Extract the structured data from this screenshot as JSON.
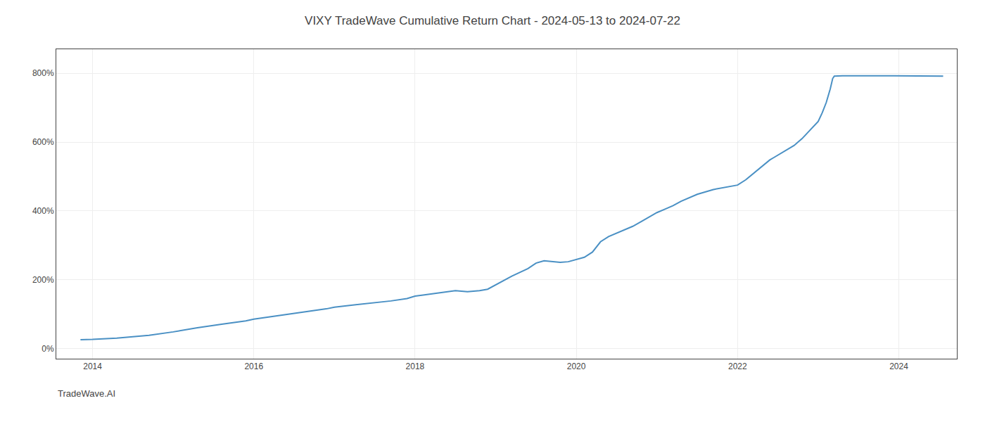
{
  "chart_data": {
    "type": "line",
    "title": "VIXY TradeWave Cumulative Return Chart - 2024-05-13 to 2024-07-22",
    "annotations": [
      "TradeWave.AI"
    ],
    "color": "#4a90c4",
    "grid": true,
    "x": [
      2013.85,
      2014.0,
      2014.3,
      2014.7,
      2015.0,
      2015.3,
      2015.6,
      2015.9,
      2016.0,
      2016.3,
      2016.6,
      2016.9,
      2017.0,
      2017.3,
      2017.5,
      2017.7,
      2017.9,
      2018.0,
      2018.1,
      2018.3,
      2018.5,
      2018.65,
      2018.8,
      2018.9,
      2019.0,
      2019.2,
      2019.4,
      2019.5,
      2019.6,
      2019.7,
      2019.8,
      2019.9,
      2020.0,
      2020.1,
      2020.2,
      2020.3,
      2020.4,
      2020.5,
      2020.6,
      2020.7,
      2020.8,
      2020.9,
      2021.0,
      2021.1,
      2021.2,
      2021.3,
      2021.5,
      2021.7,
      2021.9,
      2022.0,
      2022.1,
      2022.2,
      2022.3,
      2022.4,
      2022.45,
      2022.5,
      2022.6,
      2022.7,
      2022.8,
      2022.9,
      2023.0,
      2023.05,
      2023.1,
      2023.15,
      2023.18,
      2023.2,
      2023.3,
      2023.5,
      2023.7,
      2024.0,
      2024.2,
      2024.4,
      2024.55
    ],
    "values": [
      25,
      26,
      30,
      38,
      48,
      60,
      70,
      80,
      85,
      95,
      105,
      115,
      120,
      128,
      133,
      138,
      145,
      152,
      155,
      162,
      168,
      165,
      168,
      172,
      185,
      210,
      232,
      248,
      255,
      253,
      250,
      252,
      258,
      265,
      280,
      310,
      325,
      335,
      345,
      355,
      368,
      382,
      395,
      405,
      415,
      428,
      448,
      462,
      470,
      475,
      490,
      510,
      530,
      548,
      555,
      562,
      575,
      590,
      610,
      635,
      660,
      685,
      715,
      755,
      785,
      792,
      793,
      793,
      793,
      793,
      793,
      792,
      792
    ],
    "xlim": [
      2013.55,
      2024.72
    ],
    "xticks": [
      2014,
      2016,
      2018,
      2020,
      2022,
      2024
    ],
    "ylim": [
      -30,
      870
    ],
    "yticks": [
      {
        "value": 0,
        "label": "0%"
      },
      {
        "value": 200,
        "label": "200%"
      },
      {
        "value": 400,
        "label": "400%"
      },
      {
        "value": 600,
        "label": "600%"
      },
      {
        "value": 800,
        "label": "800%"
      }
    ]
  }
}
